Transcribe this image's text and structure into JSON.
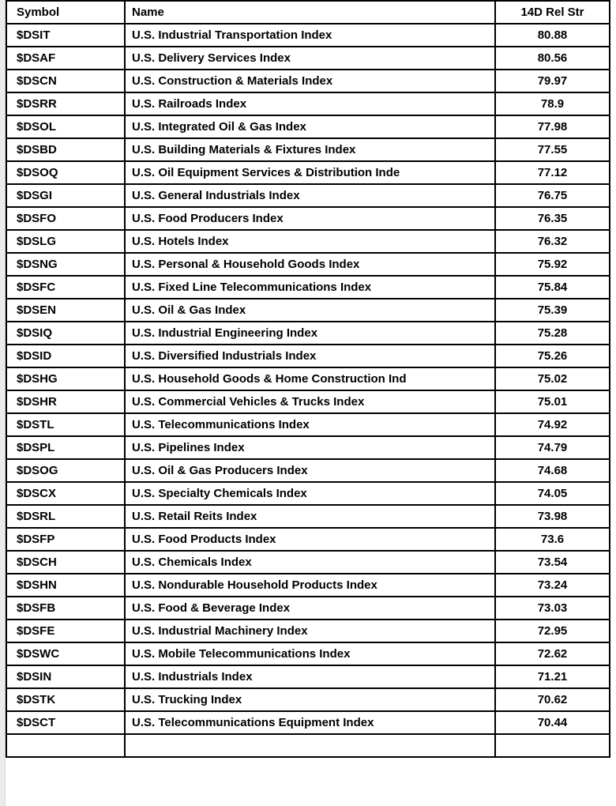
{
  "colors": {
    "grid_line": "#000000",
    "background": "#ffffff",
    "text": "#000000",
    "gutter": "#ebebeb"
  },
  "table": {
    "headers": [
      "Symbol",
      "Name",
      "14D Rel Str"
    ],
    "rows": [
      {
        "symbol": "$DSIT",
        "name": "U.S. Industrial Transportation Index",
        "rel_str": "80.88"
      },
      {
        "symbol": "$DSAF",
        "name": "U.S. Delivery Services Index",
        "rel_str": "80.56"
      },
      {
        "symbol": "$DSCN",
        "name": "U.S. Construction & Materials Index",
        "rel_str": "79.97"
      },
      {
        "symbol": "$DSRR",
        "name": "U.S. Railroads Index",
        "rel_str": "78.9"
      },
      {
        "symbol": "$DSOL",
        "name": "U.S. Integrated Oil & Gas Index",
        "rel_str": "77.98"
      },
      {
        "symbol": "$DSBD",
        "name": "U.S. Building Materials & Fixtures Index",
        "rel_str": "77.55"
      },
      {
        "symbol": "$DSOQ",
        "name": "U.S. Oil Equipment Services & Distribution Inde",
        "rel_str": "77.12"
      },
      {
        "symbol": "$DSGI",
        "name": "U.S. General Industrials Index",
        "rel_str": "76.75"
      },
      {
        "symbol": "$DSFO",
        "name": "U.S. Food Producers Index",
        "rel_str": "76.35"
      },
      {
        "symbol": "$DSLG",
        "name": "U.S. Hotels Index",
        "rel_str": "76.32"
      },
      {
        "symbol": "$DSNG",
        "name": "U.S. Personal & Household Goods Index",
        "rel_str": "75.92"
      },
      {
        "symbol": "$DSFC",
        "name": "U.S. Fixed Line Telecommunications Index",
        "rel_str": "75.84"
      },
      {
        "symbol": "$DSEN",
        "name": "U.S. Oil & Gas Index",
        "rel_str": "75.39"
      },
      {
        "symbol": "$DSIQ",
        "name": "U.S. Industrial Engineering Index",
        "rel_str": "75.28"
      },
      {
        "symbol": "$DSID",
        "name": "U.S. Diversified Industrials Index",
        "rel_str": "75.26"
      },
      {
        "symbol": "$DSHG",
        "name": "U.S. Household Goods & Home Construction Ind",
        "rel_str": "75.02"
      },
      {
        "symbol": "$DSHR",
        "name": "U.S. Commercial Vehicles & Trucks Index",
        "rel_str": "75.01"
      },
      {
        "symbol": "$DSTL",
        "name": "U.S. Telecommunications Index",
        "rel_str": "74.92"
      },
      {
        "symbol": "$DSPL",
        "name": "U.S. Pipelines Index",
        "rel_str": "74.79"
      },
      {
        "symbol": "$DSOG",
        "name": "U.S. Oil & Gas Producers Index",
        "rel_str": "74.68"
      },
      {
        "symbol": "$DSCX",
        "name": "U.S. Specialty Chemicals Index",
        "rel_str": "74.05"
      },
      {
        "symbol": "$DSRL",
        "name": "U.S. Retail Reits Index",
        "rel_str": "73.98"
      },
      {
        "symbol": "$DSFP",
        "name": "U.S. Food Products Index",
        "rel_str": "73.6"
      },
      {
        "symbol": "$DSCH",
        "name": "U.S. Chemicals Index",
        "rel_str": "73.54"
      },
      {
        "symbol": "$DSHN",
        "name": "U.S. Nondurable Household Products Index",
        "rel_str": "73.24"
      },
      {
        "symbol": "$DSFB",
        "name": "U.S. Food & Beverage Index",
        "rel_str": "73.03"
      },
      {
        "symbol": "$DSFE",
        "name": "U.S. Industrial Machinery Index",
        "rel_str": "72.95"
      },
      {
        "symbol": "$DSWC",
        "name": "U.S. Mobile Telecommunications Index",
        "rel_str": "72.62"
      },
      {
        "symbol": "$DSIN",
        "name": "U.S. Industrials Index",
        "rel_str": "71.21"
      },
      {
        "symbol": "$DSTK",
        "name": "U.S. Trucking Index",
        "rel_str": "70.62"
      },
      {
        "symbol": "$DSCT",
        "name": "U.S. Telecommunications Equipment Index",
        "rel_str": "70.44"
      }
    ]
  }
}
